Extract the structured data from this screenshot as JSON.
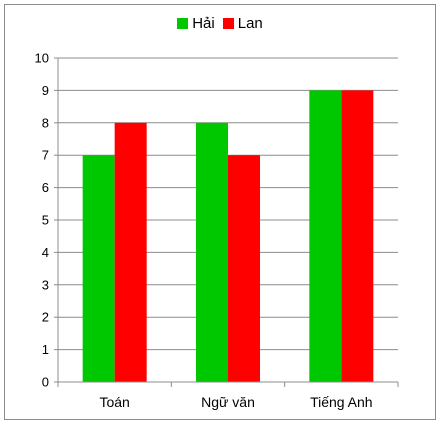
{
  "chart_data": {
    "type": "bar",
    "categories": [
      "Toán",
      "Ngữ văn",
      "Tiếng Anh"
    ],
    "series": [
      {
        "name": "Hải",
        "values": [
          7,
          8,
          9
        ],
        "color": "#00c800"
      },
      {
        "name": "Lan",
        "values": [
          8,
          7,
          9
        ],
        "color": "#ff0000"
      }
    ],
    "ylim": [
      0,
      10
    ],
    "yticks": [
      0,
      1,
      2,
      3,
      4,
      5,
      6,
      7,
      8,
      9,
      10
    ],
    "grid": true,
    "legend_position": "top-center",
    "title": "",
    "xlabel": "",
    "ylabel": ""
  }
}
